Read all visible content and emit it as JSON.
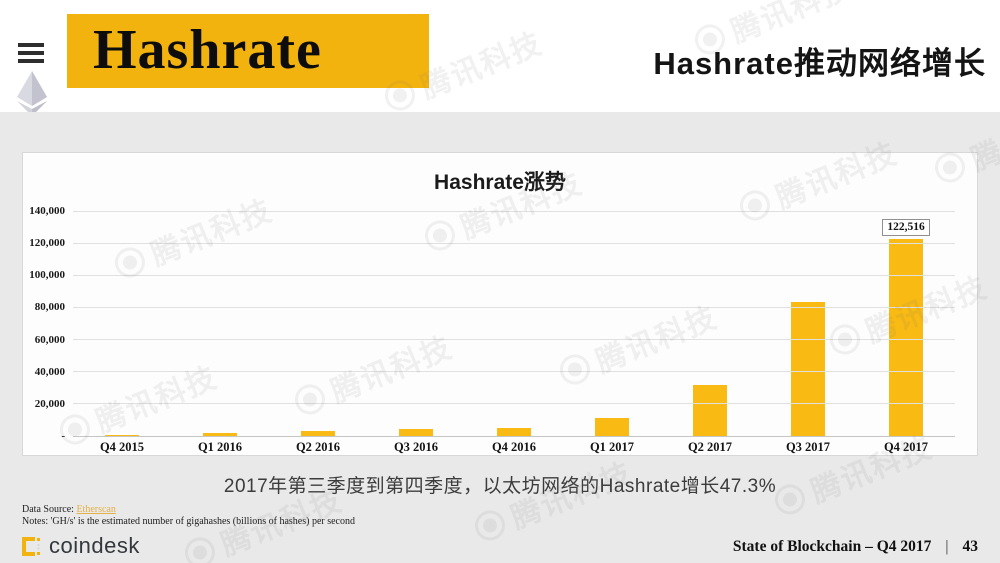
{
  "header": {
    "title": "Hashrate",
    "headline": "Hashrate推动网络增长"
  },
  "icons": {
    "menu": "hamburger-menu",
    "ethereum": "ethereum-diamond-logo",
    "coindesk": "coindesk-pixel-c"
  },
  "colors": {
    "accent_yellow": "#F2B30F",
    "bar_yellow": "#F8BA13",
    "background_gray": "#E9E9E9"
  },
  "chart_data": {
    "type": "bar",
    "title": "Hashrate涨势",
    "categories": [
      "Q4 2015",
      "Q1 2016",
      "Q2 2016",
      "Q3 2016",
      "Q4 2016",
      "Q1 2017",
      "Q2 2017",
      "Q3 2017",
      "Q4 2017"
    ],
    "values": [
      800,
      1800,
      3300,
      4500,
      5200,
      11500,
      31500,
      83175,
      122516
    ],
    "y_ticks": [
      "140,000",
      "120,000",
      "100,000",
      "80,000",
      "60,000",
      "40,000",
      "20,000",
      "-"
    ],
    "ylim": [
      0,
      140000
    ],
    "grid": true,
    "legend": "none",
    "bar_color": "#F8BA13",
    "annotation": {
      "index": 8,
      "label": "122,516"
    }
  },
  "caption": "2017年第三季度到第四季度，以太坊网络的Hashrate增长47.3%",
  "source": {
    "label": "Data Source:",
    "link": "Etherscan"
  },
  "notes": "Notes: 'GH/s' is the estimated number of gigahashes (billions of hashes) per second",
  "footer": {
    "brand": "coindesk",
    "report": "State of Blockchain – Q4 2017",
    "divider": "|",
    "page": "43"
  },
  "watermark": {
    "text": "腾讯科技"
  }
}
